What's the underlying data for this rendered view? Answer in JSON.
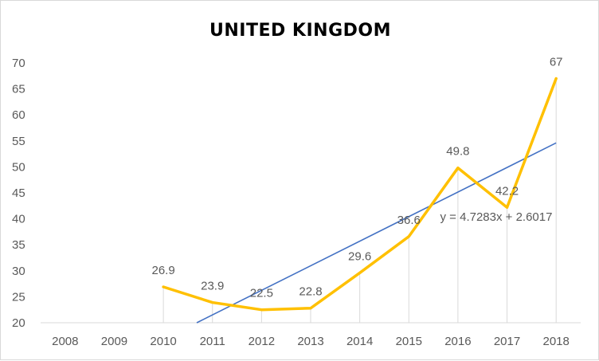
{
  "chart_data": {
    "type": "line",
    "title": "UNITED  KINGDOM",
    "categories": [
      "2008",
      "2009",
      "2010",
      "2011",
      "2012",
      "2013",
      "2014",
      "2015",
      "2016",
      "2017",
      "2018"
    ],
    "series": [
      {
        "values": [
          null,
          null,
          26.9,
          23.9,
          22.5,
          22.8,
          29.6,
          36.6,
          49.8,
          42.2,
          67
        ],
        "data_labels": [
          null,
          null,
          "26.9",
          "23.9",
          "22.5",
          "22.8",
          "29.6",
          "36.6",
          "49.8",
          "42.2",
          "67"
        ],
        "color": "#FFC000"
      }
    ],
    "trendline": {
      "type": "linear",
      "slope": 4.7283,
      "intercept": 2.6017,
      "equation": "y = 4.7283x + 2.6017",
      "color": "#4472C4"
    },
    "ylim": [
      20,
      70
    ],
    "yticks": [
      "20",
      "25",
      "30",
      "35",
      "40",
      "45",
      "50",
      "55",
      "60",
      "65",
      "70"
    ],
    "xlabel": "",
    "ylabel": "",
    "grid": false,
    "drop_lines": true,
    "legend": "none"
  }
}
